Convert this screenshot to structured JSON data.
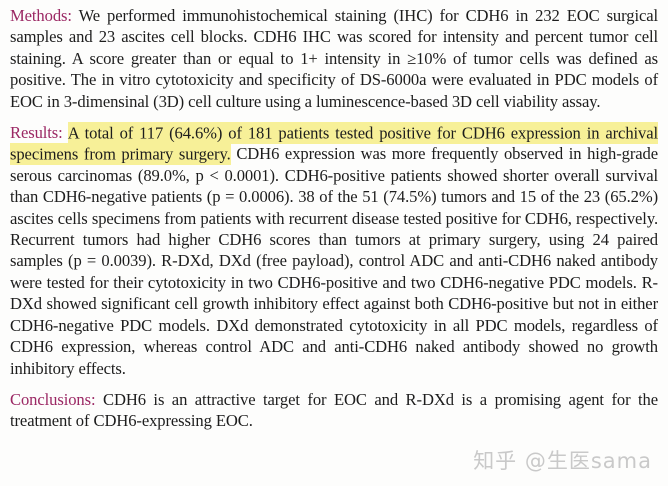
{
  "page": {
    "background_color": "#fdfdfc",
    "heading_color": "#9b2864",
    "body_text_color": "#1d1d1d",
    "highlight_color": "#f7f098",
    "watermark_color": "#c9c9c9"
  },
  "abstract": {
    "methods": {
      "label": "Methods:",
      "text": "We performed immunohistochemical staining (IHC) for CDH6 in 232 EOC surgical samples and 23 ascites cell blocks. CDH6 IHC was scored for intensity and percent tumor cell staining. A score greater than or equal to 1+ intensity in ≥10% of tumor cells was defined as positive. The in vitro cytotoxicity and specificity of DS-6000a were evaluated in PDC models of EOC in 3-dimensinal (3D) cell culture using a luminescence-based 3D cell viability assay."
    },
    "results": {
      "label": "Results:",
      "highlighted_text": "A total of 117 (64.6%) of 181 patients tested positive for CDH6 expression in archival specimens from primary surgery.",
      "text": "CDH6 expression was more frequently observed in high-grade serous carcinomas (89.0%, p < 0.0001). CDH6-positive patients showed shorter overall survival than CDH6-negative patients (p = 0.0006). 38 of the 51 (74.5%) tumors and 15 of the 23 (65.2%) ascites cells specimens from patients with recurrent disease tested positive for CDH6, respectively. Recurrent tumors had higher CDH6 scores than tumors at primary surgery, using 24 paired samples (p = 0.0039). R-DXd, DXd (free payload), control ADC and anti-CDH6 naked antibody were tested for their cytotoxicity in two CDH6-positive and two CDH6-negative PDC models. R-DXd showed significant cell growth inhibitory effect against both CDH6-positive but not in either CDH6-negative PDC models. DXd demonstrated cytotoxicity in all PDC models, regardless of CDH6 expression, whereas control ADC and anti-CDH6 naked antibody showed no growth inhibitory effects."
    },
    "conclusions": {
      "label": "Conclusions:",
      "text": "CDH6 is an attractive target for EOC and R-DXd is a promising agent for the treatment of CDH6-expressing EOC."
    }
  },
  "watermark": {
    "text": "知乎 @生医sama"
  }
}
